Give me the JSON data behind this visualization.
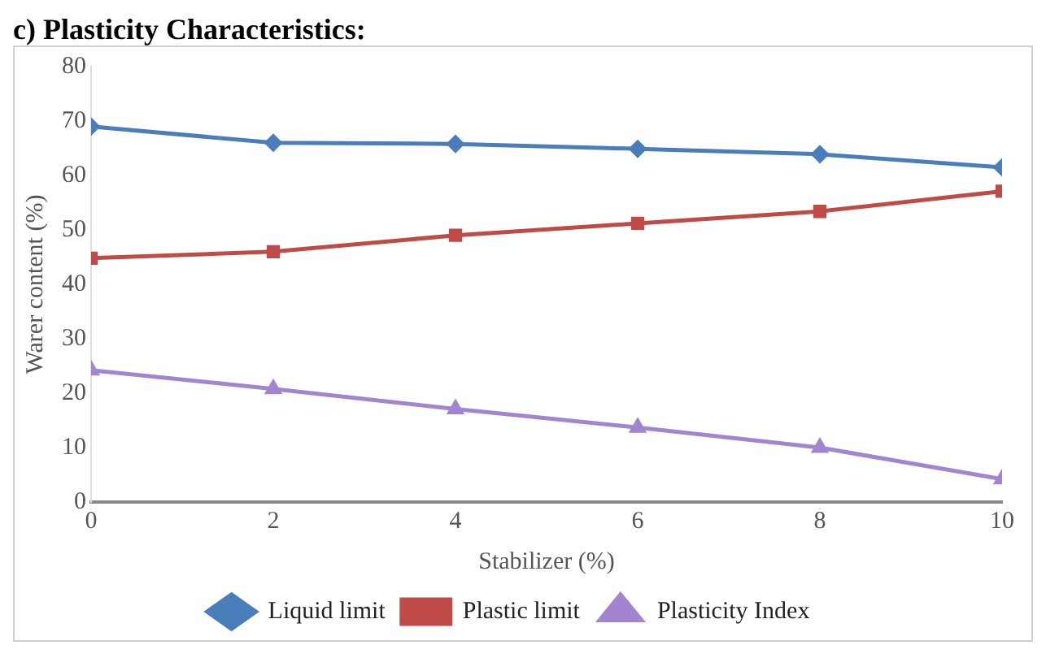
{
  "chart_data": {
    "type": "line",
    "title": "c) Plasticity Characteristics:",
    "xlabel": "Stabilizer (%)",
    "ylabel": "Warer content (%)",
    "x": [
      0,
      2,
      4,
      6,
      8,
      10
    ],
    "xlim": [
      0,
      10
    ],
    "xticks": [
      0,
      2,
      4,
      6,
      8,
      10
    ],
    "ylim": [
      0,
      80
    ],
    "yticks": [
      0,
      10,
      20,
      30,
      40,
      50,
      60,
      70,
      80
    ],
    "grid": false,
    "legend": "bottom",
    "line_style": "solid",
    "series": [
      {
        "name": "Liquid limit",
        "color": "#4a7ebb",
        "marker": "diamond",
        "values": [
          69,
          66,
          65.8,
          64.9,
          63.9,
          61.5
        ]
      },
      {
        "name": "Plastic limit",
        "color": "#be4b48",
        "marker": "square",
        "values": [
          44.8,
          46,
          49,
          51.2,
          53.4,
          57.1
        ]
      },
      {
        "name": "Plasticity Index",
        "color": "#a385cf",
        "marker": "triangle",
        "values": [
          24.2,
          20.8,
          17.1,
          13.7,
          10,
          4.2
        ]
      }
    ]
  }
}
